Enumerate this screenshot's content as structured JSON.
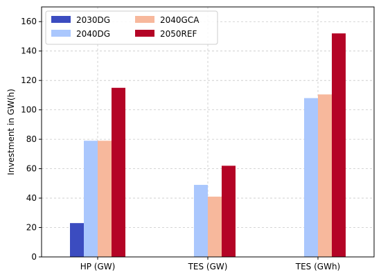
{
  "chart_data": {
    "type": "bar",
    "title": "",
    "xlabel": "",
    "ylabel": "Investment in GW(h)",
    "ylim": [
      0,
      170
    ],
    "yticks": [
      0,
      20,
      40,
      60,
      80,
      100,
      120,
      140,
      160
    ],
    "grid": true,
    "legend_position": "top-left",
    "categories": [
      "HP (GW)",
      "TES (GW)",
      "TES (GWh)"
    ],
    "series": [
      {
        "name": "2030DG",
        "color": "#3b4cc0",
        "values": [
          23,
          0,
          0
        ]
      },
      {
        "name": "2040DG",
        "color": "#aac7fd",
        "values": [
          79,
          49,
          108
        ]
      },
      {
        "name": "2040GCA",
        "color": "#f7b89c",
        "values": [
          79,
          41,
          110.5
        ]
      },
      {
        "name": "2050REF",
        "color": "#b40426",
        "values": [
          115,
          62,
          152
        ]
      }
    ]
  }
}
